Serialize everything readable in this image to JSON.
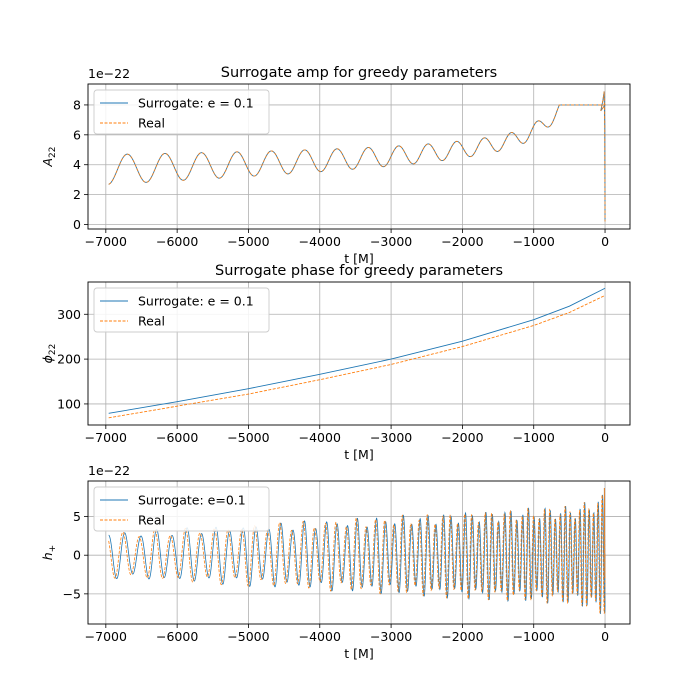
{
  "chart_data": [
    {
      "type": "line",
      "title": "Surrogate amp for greedy parameters",
      "xlabel": "t [M]",
      "ylabel": "A",
      "ylabel_sub": "22",
      "offset_text": "1e−22",
      "xlim": [
        -7250,
        350
      ],
      "ylim": [
        -0.3,
        9.4
      ],
      "xticks": [
        -7000,
        -6000,
        -5000,
        -4000,
        -3000,
        -2000,
        -1000,
        0
      ],
      "xtick_labels": [
        "−7000",
        "−6000",
        "−5000",
        "−4000",
        "−3000",
        "−2000",
        "−1000",
        "0"
      ],
      "yticks": [
        0,
        2,
        4,
        6,
        8
      ],
      "ytick_labels": [
        "0",
        "2",
        "4",
        "6",
        "8"
      ],
      "grid": true,
      "legend_position": "upper-left",
      "series": [
        {
          "name": "Surrogate: e = 0.1",
          "color": "#1f77b4",
          "style": "solid"
        },
        {
          "name": "Real",
          "color": "#ff7f0e",
          "style": "dashed"
        }
      ],
      "t_start": -6960,
      "t_end": 0,
      "peak_value": 8.9,
      "eccentric_period_start": 545,
      "eccentric_period_end": 330
    },
    {
      "type": "line",
      "title": "Surrogate phase for greedy parameters",
      "xlabel": "t [M]",
      "ylabel": "ϕ",
      "ylabel_sub": "22",
      "xlim": [
        -7250,
        350
      ],
      "ylim": [
        53,
        372
      ],
      "xticks": [
        -7000,
        -6000,
        -5000,
        -4000,
        -3000,
        -2000,
        -1000,
        0
      ],
      "xtick_labels": [
        "−7000",
        "−6000",
        "−5000",
        "−4000",
        "−3000",
        "−2000",
        "−1000",
        "0"
      ],
      "yticks": [
        100,
        200,
        300
      ],
      "ytick_labels": [
        "100",
        "200",
        "300"
      ],
      "grid": true,
      "legend_position": "upper-left",
      "series": [
        {
          "name": "Surrogate: e = 0.1",
          "color": "#1f77b4",
          "style": "solid",
          "x": [
            -6960,
            -6000,
            -5000,
            -4000,
            -3000,
            -2000,
            -1000,
            -500,
            0
          ],
          "y": [
            79,
            105,
            134,
            166,
            200,
            240,
            288,
            318,
            358
          ]
        },
        {
          "name": "Real",
          "color": "#ff7f0e",
          "style": "dashed",
          "x": [
            -6960,
            -6000,
            -5000,
            -4000,
            -3000,
            -2000,
            -1000,
            -500,
            0
          ],
          "y": [
            69,
            95,
            122,
            154,
            188,
            228,
            275,
            304,
            342
          ]
        }
      ]
    },
    {
      "type": "line",
      "title": "",
      "xlabel": "t [M]",
      "ylabel": "h",
      "ylabel_sub": "+",
      "offset_text": "1e−22",
      "xlim": [
        -7250,
        350
      ],
      "ylim": [
        -8.9,
        9.6
      ],
      "xticks": [
        -7000,
        -6000,
        -5000,
        -4000,
        -3000,
        -2000,
        -1000,
        0
      ],
      "xtick_labels": [
        "−7000",
        "−6000",
        "−5000",
        "−4000",
        "−3000",
        "−2000",
        "−1000",
        "0"
      ],
      "yticks": [
        -5,
        0,
        5
      ],
      "ytick_labels": [
        "−5",
        "0",
        "5"
      ],
      "grid": true,
      "legend_position": "upper-left",
      "series": [
        {
          "name": "Surrogate: e=0.1",
          "color": "#1f77b4",
          "style": "solid"
        },
        {
          "name": "Real",
          "color": "#ff7f0e",
          "style": "dashed"
        }
      ],
      "t_start": -6960,
      "t_end": 0,
      "gw_period_start": 230,
      "gw_period_end": 60,
      "phase_offset": 0.7
    }
  ]
}
